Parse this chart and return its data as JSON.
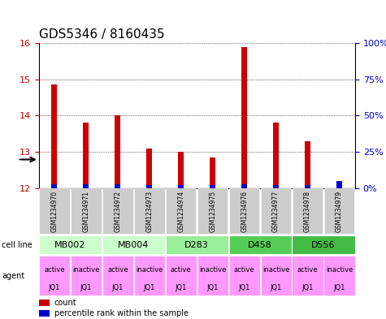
{
  "title": "GDS5346 / 8160435",
  "samples": [
    "GSM1234970",
    "GSM1234971",
    "GSM1234972",
    "GSM1234973",
    "GSM1234974",
    "GSM1234975",
    "GSM1234976",
    "GSM1234977",
    "GSM1234978",
    "GSM1234979"
  ],
  "red_values": [
    14.85,
    13.8,
    14.0,
    13.1,
    13.0,
    12.85,
    15.9,
    13.8,
    13.3,
    12.1
  ],
  "blue_percentile": [
    3,
    3,
    3,
    2,
    2,
    2,
    3,
    2,
    2,
    5
  ],
  "ylim": [
    12,
    16
  ],
  "yticks": [
    12,
    13,
    14,
    15,
    16
  ],
  "y2ticks": [
    0,
    25,
    50,
    75,
    100
  ],
  "y2labels": [
    "0%",
    "25%",
    "50%",
    "75%",
    "100%"
  ],
  "cell_lines": [
    {
      "label": "MB002",
      "span": [
        0,
        2
      ],
      "color": "#ccffcc"
    },
    {
      "label": "MB004",
      "span": [
        2,
        4
      ],
      "color": "#ccffcc"
    },
    {
      "label": "D283",
      "span": [
        4,
        6
      ],
      "color": "#99ee99"
    },
    {
      "label": "D458",
      "span": [
        6,
        8
      ],
      "color": "#55cc55"
    },
    {
      "label": "D556",
      "span": [
        8,
        10
      ],
      "color": "#44bb44"
    }
  ],
  "agents": [
    "active\nJQ1",
    "inactive\nJQ1",
    "active\nJQ1",
    "inactive\nJQ1",
    "active\nJQ1",
    "inactive\nJQ1",
    "active\nJQ1",
    "inactive\nJQ1",
    "active\nJQ1",
    "inactive\nJQ1"
  ],
  "agent_color": "#ff99ff",
  "sample_bg_color": "#cccccc",
  "red_color": "#cc0000",
  "blue_color": "#0000cc",
  "grid_color": "#000000",
  "title_fontsize": 11,
  "tick_fontsize": 8,
  "label_fontsize": 7
}
